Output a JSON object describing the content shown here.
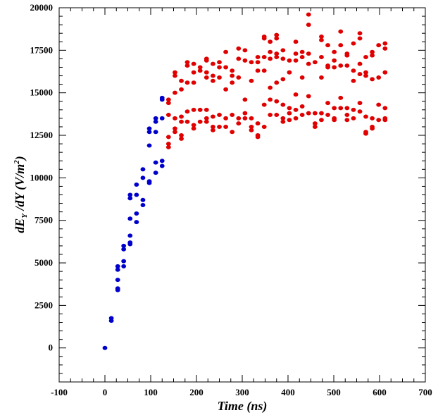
{
  "chart_data": {
    "type": "scatter",
    "title": "",
    "xlabel": "Time (ns)",
    "ylabel": "dE_Y/dY (V/m^2)",
    "xlim": [
      -100,
      700
    ],
    "ylim": [
      -2000,
      20000
    ],
    "xticks": [
      -100,
      0,
      100,
      200,
      300,
      400,
      500,
      600,
      700
    ],
    "yticks": [
      0,
      2500,
      5000,
      7500,
      10000,
      12500,
      15000,
      17500,
      20000
    ],
    "grid": false,
    "legend": "none",
    "colors": {
      "blue": "#0000cc",
      "red": "#e00000"
    },
    "series": [
      {
        "color": "blue",
        "points": [
          [
            0,
            0
          ],
          [
            14,
            1600
          ],
          [
            14,
            1750
          ],
          [
            28,
            3400
          ],
          [
            28,
            3500
          ],
          [
            28,
            4000
          ],
          [
            28,
            4600
          ],
          [
            28,
            4800
          ],
          [
            41,
            4800
          ],
          [
            41,
            5100
          ],
          [
            41,
            5800
          ],
          [
            41,
            6000
          ],
          [
            55,
            6100
          ],
          [
            55,
            6200
          ],
          [
            55,
            6600
          ],
          [
            55,
            7600
          ],
          [
            55,
            8800
          ],
          [
            55,
            9000
          ],
          [
            69,
            7400
          ],
          [
            69,
            7900
          ],
          [
            69,
            9000
          ],
          [
            69,
            9600
          ],
          [
            83,
            8400
          ],
          [
            83,
            8700
          ],
          [
            83,
            10000
          ],
          [
            83,
            10500
          ],
          [
            97,
            9700
          ],
          [
            97,
            9800
          ],
          [
            97,
            11900
          ],
          [
            97,
            12700
          ],
          [
            97,
            12900
          ],
          [
            111,
            10300
          ],
          [
            111,
            10900
          ],
          [
            111,
            12700
          ],
          [
            111,
            13300
          ],
          [
            111,
            13500
          ],
          [
            125,
            10700
          ],
          [
            125,
            11000
          ],
          [
            125,
            13500
          ],
          [
            125,
            14600
          ],
          [
            125,
            14700
          ]
        ]
      },
      {
        "color": "red",
        "points": [
          [
            139,
            11800
          ],
          [
            139,
            12000
          ],
          [
            139,
            12400
          ],
          [
            139,
            13700
          ],
          [
            139,
            14400
          ],
          [
            139,
            14600
          ],
          [
            153,
            12700
          ],
          [
            153,
            12900
          ],
          [
            153,
            13500
          ],
          [
            153,
            15000
          ],
          [
            153,
            16000
          ],
          [
            153,
            16200
          ],
          [
            167,
            12300
          ],
          [
            167,
            12500
          ],
          [
            167,
            13300
          ],
          [
            167,
            13600
          ],
          [
            167,
            15200
          ],
          [
            167,
            15700
          ],
          [
            180,
            13300
          ],
          [
            180,
            13900
          ],
          [
            180,
            15600
          ],
          [
            180,
            16600
          ],
          [
            180,
            16800
          ],
          [
            194,
            12900
          ],
          [
            194,
            13100
          ],
          [
            194,
            14000
          ],
          [
            194,
            15600
          ],
          [
            194,
            16200
          ],
          [
            194,
            16700
          ],
          [
            208,
            13300
          ],
          [
            208,
            14000
          ],
          [
            208,
            16300
          ],
          [
            208,
            16500
          ],
          [
            222,
            13300
          ],
          [
            222,
            13500
          ],
          [
            222,
            14000
          ],
          [
            222,
            15900
          ],
          [
            222,
            16200
          ],
          [
            222,
            16900
          ],
          [
            222,
            17000
          ],
          [
            236,
            12800
          ],
          [
            236,
            13000
          ],
          [
            236,
            13600
          ],
          [
            236,
            15700
          ],
          [
            236,
            16000
          ],
          [
            236,
            16700
          ],
          [
            250,
            13000
          ],
          [
            250,
            13700
          ],
          [
            250,
            15900
          ],
          [
            250,
            16500
          ],
          [
            250,
            16800
          ],
          [
            264,
            13000
          ],
          [
            264,
            13500
          ],
          [
            264,
            15200
          ],
          [
            264,
            16500
          ],
          [
            264,
            17400
          ],
          [
            278,
            12700
          ],
          [
            278,
            13700
          ],
          [
            278,
            15600
          ],
          [
            278,
            16000
          ],
          [
            278,
            16300
          ],
          [
            292,
            13200
          ],
          [
            292,
            13500
          ],
          [
            292,
            15900
          ],
          [
            292,
            17000
          ],
          [
            292,
            17600
          ],
          [
            306,
            13500
          ],
          [
            306,
            13800
          ],
          [
            306,
            14600
          ],
          [
            306,
            16900
          ],
          [
            306,
            17500
          ],
          [
            320,
            12800
          ],
          [
            320,
            13000
          ],
          [
            320,
            13500
          ],
          [
            320,
            15700
          ],
          [
            320,
            16800
          ],
          [
            334,
            12400
          ],
          [
            334,
            12500
          ],
          [
            334,
            13200
          ],
          [
            334,
            16300
          ],
          [
            334,
            16800
          ],
          [
            334,
            17100
          ],
          [
            348,
            13000
          ],
          [
            348,
            14300
          ],
          [
            348,
            16300
          ],
          [
            348,
            17100
          ],
          [
            348,
            18200
          ],
          [
            348,
            18300
          ],
          [
            361,
            13700
          ],
          [
            361,
            14600
          ],
          [
            361,
            15300
          ],
          [
            361,
            17000
          ],
          [
            361,
            17400
          ],
          [
            361,
            18000
          ],
          [
            375,
            13700
          ],
          [
            375,
            14500
          ],
          [
            375,
            15600
          ],
          [
            375,
            17100
          ],
          [
            375,
            17300
          ],
          [
            375,
            18200
          ],
          [
            375,
            18400
          ],
          [
            389,
            13300
          ],
          [
            389,
            13500
          ],
          [
            389,
            14300
          ],
          [
            389,
            15800
          ],
          [
            389,
            17000
          ],
          [
            389,
            17500
          ],
          [
            403,
            13400
          ],
          [
            403,
            13800
          ],
          [
            403,
            14100
          ],
          [
            403,
            16200
          ],
          [
            403,
            16900
          ],
          [
            417,
            13500
          ],
          [
            417,
            14000
          ],
          [
            417,
            14900
          ],
          [
            417,
            16900
          ],
          [
            417,
            17300
          ],
          [
            417,
            18000
          ],
          [
            431,
            13700
          ],
          [
            431,
            14200
          ],
          [
            431,
            15900
          ],
          [
            431,
            17100
          ],
          [
            431,
            17400
          ],
          [
            445,
            13800
          ],
          [
            445,
            14800
          ],
          [
            445,
            16700
          ],
          [
            445,
            17300
          ],
          [
            445,
            19000
          ],
          [
            445,
            19600
          ],
          [
            459,
            13000
          ],
          [
            459,
            13200
          ],
          [
            459,
            13800
          ],
          [
            459,
            16800
          ],
          [
            473,
            13400
          ],
          [
            473,
            13800
          ],
          [
            473,
            15900
          ],
          [
            473,
            17100
          ],
          [
            473,
            18100
          ],
          [
            473,
            18300
          ],
          [
            487,
            13700
          ],
          [
            487,
            14400
          ],
          [
            487,
            16500
          ],
          [
            487,
            16600
          ],
          [
            487,
            17800
          ],
          [
            501,
            13400
          ],
          [
            501,
            13500
          ],
          [
            501,
            14100
          ],
          [
            501,
            16500
          ],
          [
            501,
            16900
          ],
          [
            501,
            17400
          ],
          [
            515,
            14100
          ],
          [
            515,
            14700
          ],
          [
            515,
            16600
          ],
          [
            515,
            17800
          ],
          [
            515,
            18600
          ],
          [
            529,
            13400
          ],
          [
            529,
            13700
          ],
          [
            529,
            14100
          ],
          [
            529,
            16600
          ],
          [
            529,
            17200
          ],
          [
            529,
            17300
          ],
          [
            543,
            13500
          ],
          [
            543,
            14000
          ],
          [
            543,
            15700
          ],
          [
            543,
            16300
          ],
          [
            543,
            17900
          ],
          [
            557,
            13900
          ],
          [
            557,
            14400
          ],
          [
            557,
            16100
          ],
          [
            557,
            16700
          ],
          [
            557,
            18200
          ],
          [
            557,
            18500
          ],
          [
            570,
            12600
          ],
          [
            570,
            12700
          ],
          [
            570,
            13600
          ],
          [
            570,
            16000
          ],
          [
            570,
            16200
          ],
          [
            570,
            17100
          ],
          [
            584,
            12900
          ],
          [
            584,
            13000
          ],
          [
            584,
            13500
          ],
          [
            584,
            15800
          ],
          [
            584,
            17200
          ],
          [
            584,
            17400
          ],
          [
            598,
            13400
          ],
          [
            598,
            14300
          ],
          [
            598,
            15900
          ],
          [
            598,
            17800
          ],
          [
            612,
            13400
          ],
          [
            612,
            13500
          ],
          [
            612,
            14100
          ],
          [
            612,
            16200
          ],
          [
            612,
            17600
          ],
          [
            612,
            17900
          ]
        ]
      }
    ]
  }
}
